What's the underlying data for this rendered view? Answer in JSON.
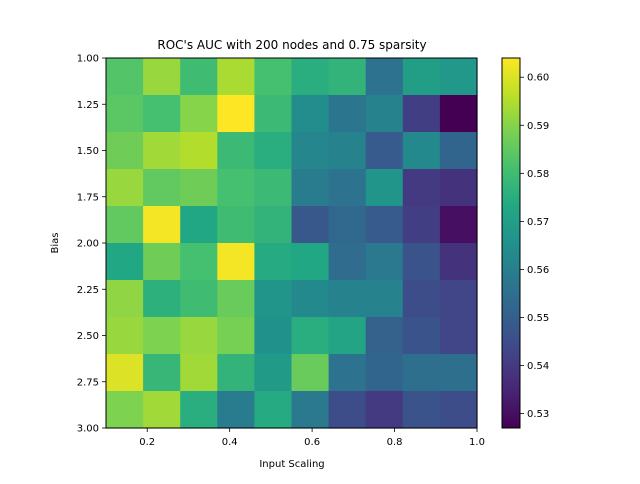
{
  "chart_data": {
    "type": "heatmap",
    "title": "ROC's AUC with 200 nodes and 0.75 sparsity",
    "xlabel": "Input Scaling",
    "ylabel": "Bias",
    "xlim": [
      0.1,
      1.0
    ],
    "ylim": [
      3.0,
      1.0
    ],
    "x_ticks": [
      "0.2",
      "0.4",
      "0.6",
      "0.8",
      "1.0"
    ],
    "x_tick_values": [
      0.2,
      0.4,
      0.6,
      0.8,
      1.0
    ],
    "y_ticks": [
      "1.00",
      "1.25",
      "1.50",
      "1.75",
      "2.00",
      "2.25",
      "2.50",
      "2.75",
      "3.00"
    ],
    "y_tick_values": [
      1.0,
      1.25,
      1.5,
      1.75,
      2.0,
      2.25,
      2.5,
      2.75,
      3.0
    ],
    "colorbar": {
      "colormap": "viridis",
      "vmin": 0.527,
      "vmax": 0.604,
      "ticks": [
        "0.53",
        "0.54",
        "0.55",
        "0.56",
        "0.57",
        "0.58",
        "0.59",
        "0.60"
      ],
      "tick_values": [
        0.53,
        0.54,
        0.55,
        0.56,
        0.57,
        0.58,
        0.59,
        0.6
      ]
    },
    "grid": false,
    "values": [
      [
        0.583,
        0.592,
        0.58,
        0.594,
        0.581,
        0.575,
        0.577,
        0.556,
        0.57,
        0.568
      ],
      [
        0.584,
        0.581,
        0.59,
        0.604,
        0.579,
        0.564,
        0.557,
        0.561,
        0.541,
        0.527
      ],
      [
        0.587,
        0.593,
        0.595,
        0.579,
        0.575,
        0.562,
        0.561,
        0.549,
        0.563,
        0.552
      ],
      [
        0.592,
        0.585,
        0.587,
        0.581,
        0.579,
        0.559,
        0.556,
        0.567,
        0.54,
        0.538
      ],
      [
        0.585,
        0.603,
        0.573,
        0.58,
        0.577,
        0.548,
        0.553,
        0.549,
        0.541,
        0.53
      ],
      [
        0.573,
        0.587,
        0.581,
        0.603,
        0.574,
        0.573,
        0.554,
        0.558,
        0.547,
        0.538
      ],
      [
        0.591,
        0.576,
        0.58,
        0.586,
        0.567,
        0.563,
        0.561,
        0.561,
        0.545,
        0.543
      ],
      [
        0.592,
        0.589,
        0.592,
        0.588,
        0.566,
        0.575,
        0.572,
        0.551,
        0.547,
        0.543
      ],
      [
        0.6,
        0.578,
        0.593,
        0.577,
        0.569,
        0.586,
        0.556,
        0.552,
        0.555,
        0.555
      ],
      [
        0.589,
        0.593,
        0.575,
        0.559,
        0.574,
        0.558,
        0.545,
        0.54,
        0.547,
        0.545
      ]
    ]
  }
}
